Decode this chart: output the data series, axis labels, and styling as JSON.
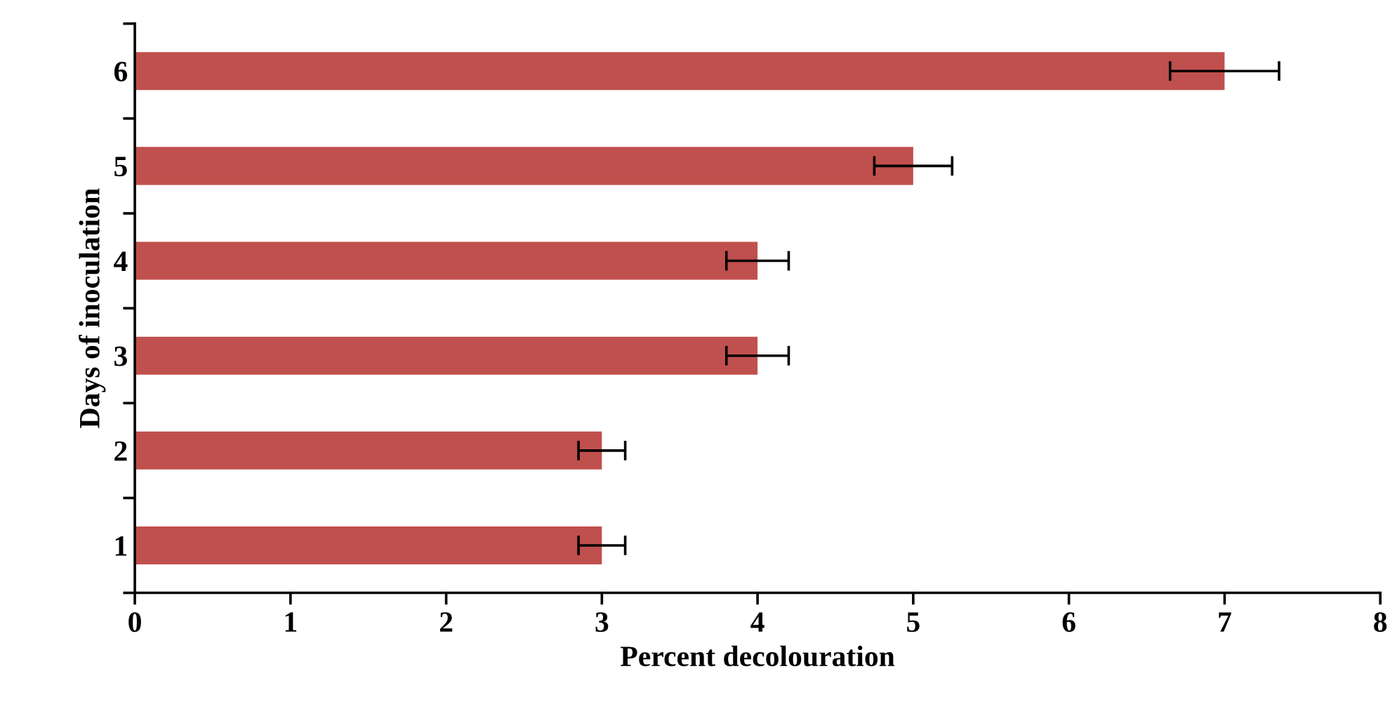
{
  "chart_data": {
    "type": "bar",
    "orientation": "horizontal",
    "xlabel": "Percent decolouration",
    "ylabel": "Days of inoculation",
    "categories": [
      "6",
      "5",
      "4",
      "3",
      "2",
      "1"
    ],
    "values": [
      7,
      5,
      4,
      4,
      3,
      3
    ],
    "errors": [
      0.35,
      0.25,
      0.2,
      0.2,
      0.15,
      0.15
    ],
    "color": "#c0504d",
    "xlim": [
      0,
      8
    ],
    "xticks": [
      0,
      1,
      2,
      3,
      4,
      5,
      6,
      7,
      8
    ],
    "grid": false
  }
}
